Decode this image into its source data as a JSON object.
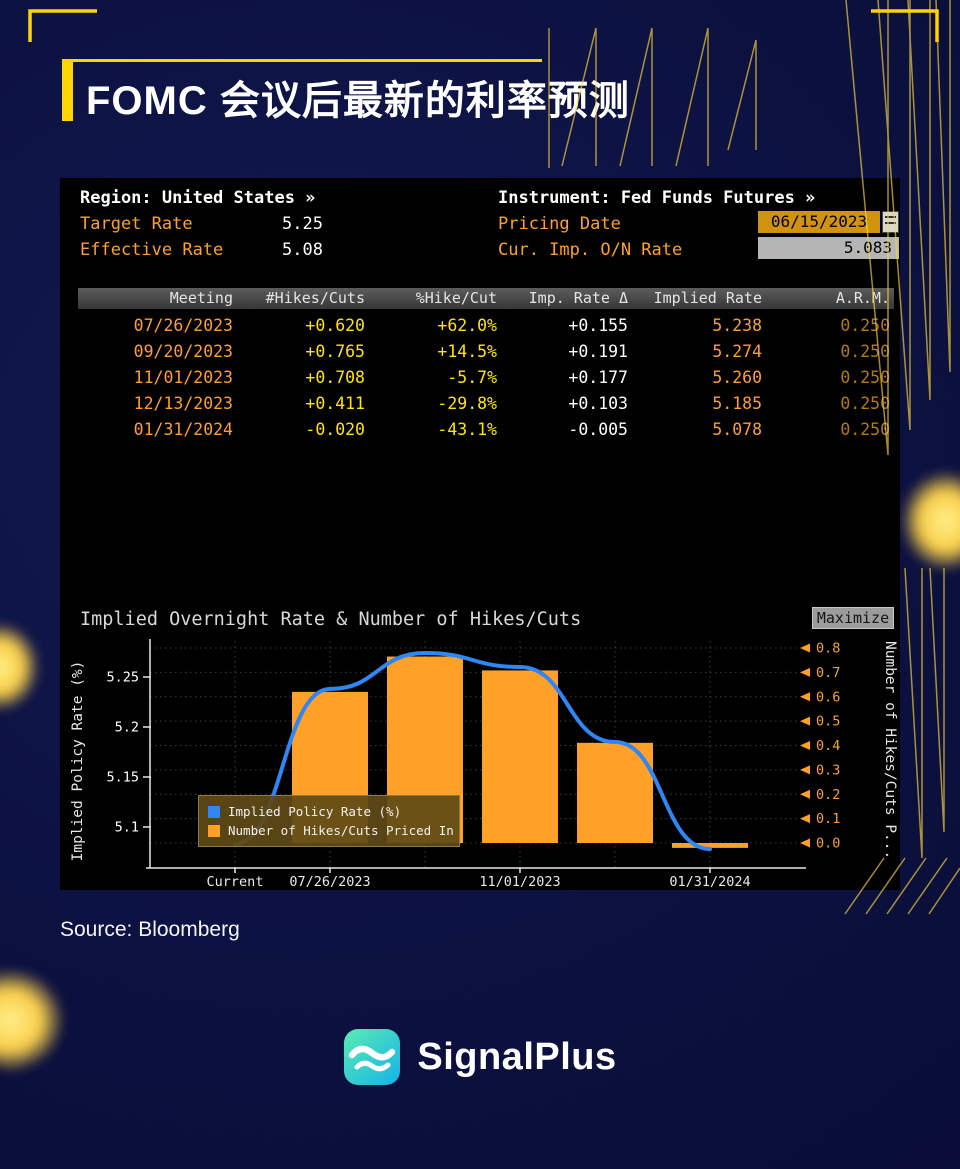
{
  "page": {
    "title": "FOMC 会议后最新的利率预测",
    "source": "Source: Bloomberg"
  },
  "brand": {
    "name": "SignalPlus"
  },
  "terminal": {
    "header": {
      "region": "Region: United States »",
      "instrument": "Instrument: Fed Funds Futures »",
      "target_rate_label": "Target Rate",
      "target_rate_value": "5.25",
      "pricing_date_label": "Pricing Date",
      "pricing_date_value": "06/15/2023",
      "effective_rate_label": "Effective Rate",
      "effective_rate_value": "5.08",
      "cur_imp_label": "Cur. Imp. O/N Rate",
      "cur_imp_value": "5.083"
    },
    "table": {
      "columns": [
        "Meeting",
        "#Hikes/Cuts",
        "%Hike/Cut",
        "Imp. Rate Δ",
        "Implied Rate",
        "A.R.M."
      ],
      "column_colors": [
        "#ff9d2e",
        "#ffe600",
        "#ffe600",
        "#ffffff",
        "#ff9d2e",
        "#b47a10"
      ],
      "rows": [
        [
          "07/26/2023",
          "+0.620",
          "+62.0%",
          "+0.155",
          "5.238",
          "0.250"
        ],
        [
          "09/20/2023",
          "+0.765",
          "+14.5%",
          "+0.191",
          "5.274",
          "0.250"
        ],
        [
          "11/01/2023",
          "+0.708",
          "-5.7%",
          "+0.177",
          "5.260",
          "0.250"
        ],
        [
          "12/13/2023",
          "+0.411",
          "-29.8%",
          "+0.103",
          "5.185",
          "0.250"
        ],
        [
          "01/31/2024",
          "-0.020",
          "-43.1%",
          "-0.005",
          "5.078",
          "0.250"
        ]
      ]
    },
    "chart_header": {
      "title": "Implied Overnight Rate & Number of Hikes/Cuts",
      "maximize_label": "Maximize"
    }
  },
  "chart_data": {
    "type": "combo",
    "categories": [
      "Current",
      "07/26/2023",
      "09/20/2023",
      "11/01/2023",
      "12/13/2023",
      "01/31/2024"
    ],
    "series": [
      {
        "name": "Implied Policy Rate (%)",
        "type": "line",
        "axis": "left",
        "color": "#2f86f5",
        "values": [
          5.083,
          5.238,
          5.274,
          5.26,
          5.185,
          5.078
        ]
      },
      {
        "name": "Number of Hikes/Cuts Priced In",
        "type": "bar",
        "axis": "right",
        "color": "#ffa028",
        "values": [
          null,
          0.62,
          0.765,
          0.708,
          0.411,
          -0.02
        ]
      }
    ],
    "left_axis": {
      "label": "Implied Policy Rate (%)",
      "ticks": [
        5.1,
        5.15,
        5.2,
        5.25
      ],
      "range": [
        5.06,
        5.295
      ]
    },
    "right_axis": {
      "label": "Number of Hikes/Cuts P...",
      "ticks": [
        0.0,
        0.1,
        0.2,
        0.3,
        0.4,
        0.5,
        0.6,
        0.7,
        0.8
      ],
      "range": [
        -0.1,
        0.85
      ]
    },
    "x_tick_labels": [
      "Current",
      "07/26/2023",
      "11/01/2023",
      "01/31/2024"
    ],
    "legend": [
      "Implied Policy Rate (%)",
      "Number of Hikes/Cuts Priced In"
    ],
    "grid": "dotted",
    "colors": {
      "bar": "#ffa028",
      "line": "#2f86f5",
      "right_axis_text": "#ffa028",
      "left_axis_text": "#ffffff"
    }
  }
}
